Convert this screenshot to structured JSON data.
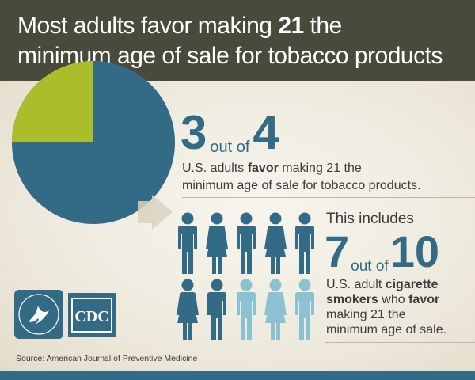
{
  "header": {
    "line1_prefix": "Most adults favor making ",
    "line1_bold": "21",
    "line1_suffix": " the",
    "line2": "minimum age of sale for tobacco products"
  },
  "stat1": {
    "numerator": "3",
    "out_of": "out of",
    "denominator": "4",
    "desc_prefix": "U.S. adults ",
    "desc_bold": "favor",
    "desc_suffix": " making 21 the",
    "desc_line2": "minimum age of sale for tobacco products.",
    "fraction_favor": 0.75
  },
  "stat2": {
    "intro": "This includes",
    "numerator": "7",
    "out_of": "out of",
    "denominator": "10",
    "desc_prefix": "U.S. adult ",
    "desc_bold1": "cigarette",
    "desc_bold2": "smokers",
    "desc_mid": " who ",
    "desc_bold3": "favor",
    "desc_line3": "making 21 the",
    "desc_line4": "minimum age of sale.",
    "favor_count": 7,
    "total": 10
  },
  "logo": {
    "cdc_text": "CDC"
  },
  "source": "Source: American Journal of Preventive Medicine",
  "colors": {
    "header_bg": "#4a4a3c",
    "blue": "#336b86",
    "green": "#a9be2a",
    "light_blue": "#8cc1d2",
    "panel_bg": "#ece8db"
  }
}
